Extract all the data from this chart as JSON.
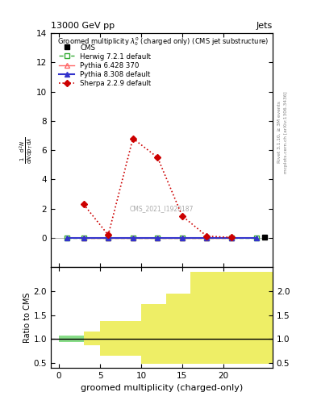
{
  "title_left": "13000 GeV pp",
  "title_right": "Jets",
  "plot_title": "Groomed multiplicity $\\lambda_0^0$ (charged only) (CMS jet substructure)",
  "ylabel_main": "$\\frac{1}{\\mathrm{d}N} \\frac{\\mathrm{d}^2N}{\\mathrm{d}p_T\\,\\mathrm{d}\\lambda}$",
  "ylabel_ratio": "Ratio to CMS",
  "xlabel": "groomed multiplicity (charged-only)",
  "watermark": "CMS_2021_I1920187",
  "right_label": "mcplots.cern.ch [arXiv:1306.3436]",
  "rivet_label": "Rivet 3.1.10, ≥ 3M events",
  "cms_x": [
    25
  ],
  "cms_y": [
    0.08
  ],
  "cms_color": "black",
  "cms_marker": "s",
  "cms_label": "CMS",
  "herwig_x": [
    1,
    3,
    6,
    9,
    12,
    15,
    18,
    21,
    24
  ],
  "herwig_y": [
    0.0,
    0.0,
    0.0,
    0.0,
    0.0,
    0.0,
    0.0,
    0.0,
    0.0
  ],
  "herwig_color": "#33aa33",
  "herwig_linestyle": "--",
  "herwig_marker": "s",
  "herwig_label": "Herwig 7.2.1 default",
  "pythia6_x": [
    3,
    6,
    9,
    12,
    15,
    18,
    21
  ],
  "pythia6_y": [
    0.0,
    0.0,
    0.0,
    0.0,
    0.0,
    0.0,
    0.0
  ],
  "pythia6_color": "#ff6666",
  "pythia6_linestyle": "-",
  "pythia6_marker": "^",
  "pythia6_label": "Pythia 6.428 370",
  "pythia8_x": [
    1,
    3,
    6,
    9,
    12,
    15,
    18,
    21,
    24
  ],
  "pythia8_y": [
    0.0,
    0.0,
    0.0,
    0.0,
    0.0,
    0.0,
    0.0,
    0.0,
    0.0
  ],
  "pythia8_color": "#3333cc",
  "pythia8_linestyle": "-",
  "pythia8_marker": "^",
  "pythia8_label": "Pythia 8.308 default",
  "sherpa_x": [
    3,
    6,
    9,
    12,
    15,
    18,
    21
  ],
  "sherpa_y": [
    2.3,
    0.2,
    6.8,
    5.5,
    1.5,
    0.12,
    0.04
  ],
  "sherpa_color": "#cc0000",
  "sherpa_linestyle": ":",
  "sherpa_marker": "D",
  "sherpa_label": "Sherpa 2.2.9 default",
  "ylim_main": [
    -2,
    14
  ],
  "yticks_main": [
    0,
    2,
    4,
    6,
    8,
    10,
    12,
    14
  ],
  "xlim": [
    -1,
    26
  ],
  "xticks": [
    0,
    5,
    10,
    15,
    20
  ],
  "green_x_edges": [
    0,
    3,
    10,
    13,
    16,
    22,
    26
  ],
  "green_tops": [
    1.07,
    1.07,
    1.28,
    1.68,
    2.4,
    2.4
  ],
  "green_bots": [
    0.93,
    0.93,
    0.75,
    0.5,
    0.5,
    0.5
  ],
  "yellow_x_edges": [
    3,
    5,
    10,
    13,
    16,
    22,
    26
  ],
  "yellow_tops": [
    1.15,
    1.37,
    1.72,
    1.95,
    2.4,
    2.4
  ],
  "yellow_bots": [
    0.87,
    0.65,
    0.48,
    0.48,
    0.48,
    0.48
  ],
  "ylim_ratio": [
    0.4,
    2.5
  ],
  "yticks_ratio": [
    0.5,
    1.0,
    1.5,
    2.0
  ],
  "green_color": "#88dd88",
  "yellow_color": "#eeee66",
  "background_color": "#ffffff"
}
